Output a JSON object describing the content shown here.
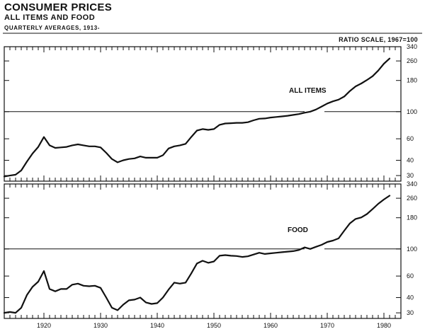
{
  "header": {
    "title": "CONSUMER PRICES",
    "subtitle": "ALL ITEMS AND FOOD",
    "note": "QUARTERLY AVERAGES, 1913-",
    "scale_note": "RATIO SCALE, 1967=100"
  },
  "colors": {
    "ink": "#111111",
    "background": "#ffffff"
  },
  "chart_data": [
    {
      "type": "line",
      "panel": "top",
      "scale": "log",
      "ylim": [
        27,
        340
      ],
      "xlim": [
        1913,
        1983
      ],
      "y_ticks": [
        340,
        260,
        180,
        100,
        60,
        40,
        30
      ],
      "reference_line": 100,
      "x_ticks": [
        1920,
        1930,
        1940,
        1950,
        1960,
        1970,
        1980
      ],
      "grid": false,
      "series": [
        {
          "name": "ALL ITEMS",
          "x": [
            1913,
            1914,
            1915,
            1916,
            1917,
            1918,
            1919,
            1920,
            1921,
            1922,
            1923,
            1924,
            1925,
            1926,
            1927,
            1928,
            1929,
            1930,
            1931,
            1932,
            1933,
            1934,
            1935,
            1936,
            1937,
            1938,
            1939,
            1940,
            1941,
            1942,
            1943,
            1944,
            1945,
            1946,
            1947,
            1948,
            1949,
            1950,
            1951,
            1952,
            1953,
            1954,
            1955,
            1956,
            1957,
            1958,
            1959,
            1960,
            1961,
            1962,
            1963,
            1964,
            1965,
            1966,
            1967,
            1968,
            1969,
            1970,
            1971,
            1972,
            1973,
            1974,
            1975,
            1976,
            1977,
            1978,
            1979,
            1980,
            1981
          ],
          "y": [
            29.5,
            30,
            30.5,
            33,
            39,
            45.5,
            51.5,
            62,
            53,
            50.5,
            51,
            51.5,
            53,
            54,
            53,
            52,
            52,
            51,
            46,
            41,
            38.5,
            40,
            41,
            41.5,
            43,
            42,
            42,
            42,
            44,
            50,
            52,
            53,
            54.5,
            62,
            70,
            72,
            71,
            72,
            78,
            80,
            80.5,
            81,
            81,
            82,
            85,
            87.5,
            88,
            89.5,
            90.5,
            91.5,
            92.5,
            94,
            95.5,
            98,
            100,
            104,
            110,
            116.5,
            121.5,
            125.5,
            133,
            147.5,
            161,
            170,
            181.5,
            195,
            217,
            247,
            272
          ]
        }
      ]
    },
    {
      "type": "line",
      "panel": "bottom",
      "scale": "log",
      "ylim": [
        27,
        340
      ],
      "xlim": [
        1913,
        1983
      ],
      "y_ticks": [
        340,
        260,
        180,
        100,
        60,
        40,
        30
      ],
      "reference_line": 100,
      "x_ticks": [
        1920,
        1930,
        1940,
        1950,
        1960,
        1970,
        1980
      ],
      "grid": false,
      "series": [
        {
          "name": "FOOD",
          "x": [
            1913,
            1914,
            1915,
            1916,
            1917,
            1918,
            1919,
            1920,
            1921,
            1922,
            1923,
            1924,
            1925,
            1926,
            1927,
            1928,
            1929,
            1930,
            1931,
            1932,
            1933,
            1934,
            1935,
            1936,
            1937,
            1938,
            1939,
            1940,
            1941,
            1942,
            1943,
            1944,
            1945,
            1946,
            1947,
            1948,
            1949,
            1950,
            1951,
            1952,
            1953,
            1954,
            1955,
            1956,
            1957,
            1958,
            1959,
            1960,
            1961,
            1962,
            1963,
            1964,
            1965,
            1966,
            1967,
            1968,
            1969,
            1970,
            1971,
            1972,
            1973,
            1974,
            1975,
            1976,
            1977,
            1978,
            1979,
            1980,
            1981
          ],
          "y": [
            30,
            30.5,
            30,
            33,
            42,
            49,
            54,
            66,
            47,
            45,
            47,
            47,
            51,
            52,
            50,
            49.5,
            50,
            48,
            40,
            33,
            31.5,
            35,
            38,
            38.5,
            40,
            36.5,
            35.5,
            36,
            40,
            46.5,
            53,
            52,
            53,
            63,
            76,
            80,
            77,
            79,
            88,
            89,
            88,
            87.5,
            86,
            87,
            90,
            93,
            91,
            92,
            93,
            94,
            95,
            96,
            98,
            103,
            100,
            104,
            108,
            114,
            117,
            122,
            141,
            162,
            176,
            181,
            193,
            212,
            234,
            254,
            273
          ]
        }
      ]
    }
  ]
}
